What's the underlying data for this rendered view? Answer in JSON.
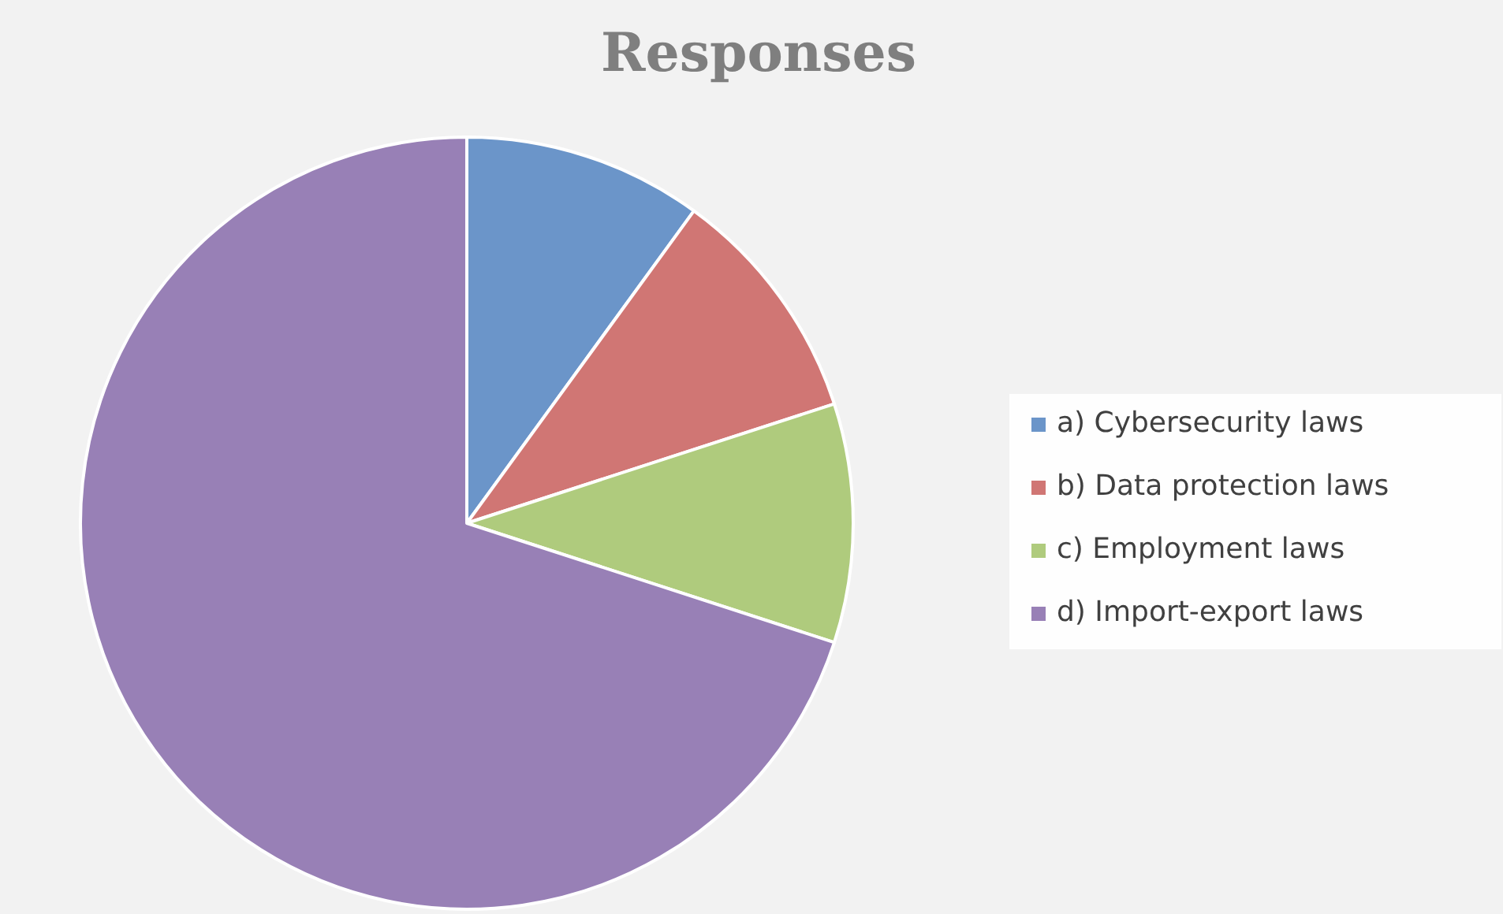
{
  "chart_data": {
    "type": "pie",
    "title": "Responses",
    "categories": [
      "a) Cybersecurity laws",
      "b) Data protection laws",
      "c) Employment laws",
      "d) Import-export laws"
    ],
    "values": [
      10,
      10,
      10,
      70
    ],
    "colors": [
      "#6b95c9",
      "#d07674",
      "#afcb7d",
      "#9880b6"
    ],
    "legend": "right"
  }
}
